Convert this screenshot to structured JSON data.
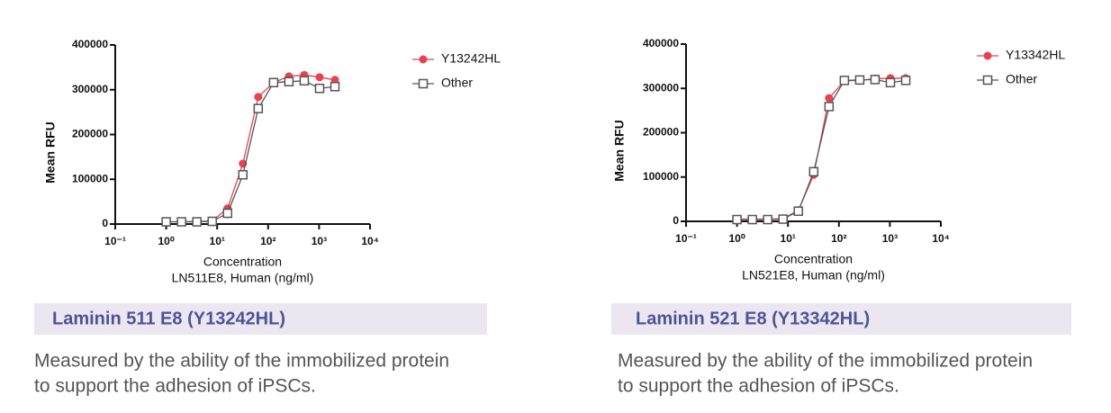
{
  "chart_data": [
    {
      "type": "scatter",
      "connect": true,
      "xscale": "log",
      "grid": false,
      "legend": "top-right",
      "ylabel": "Mean RFU",
      "xlabel": [
        "Concentration",
        "LN511E8, Human (ng/ml)"
      ],
      "x": [
        1,
        2,
        4,
        8,
        16,
        32,
        64,
        128,
        256,
        512,
        1024,
        2048
      ],
      "series": [
        {
          "name": "Y13242HL",
          "color": "#e8414f",
          "marker": "circle",
          "values": [
            5000,
            5000,
            6000,
            7000,
            35000,
            135000,
            284000,
            316000,
            330000,
            333000,
            328000,
            322000
          ]
        },
        {
          "name": "Other",
          "color": "#555555",
          "marker": "square",
          "values": [
            5000,
            5000,
            5000,
            6000,
            24000,
            110000,
            258000,
            316000,
            318000,
            320000,
            303000,
            307000
          ]
        }
      ],
      "xlim": [
        0.1,
        10000
      ],
      "xticks": [
        {
          "value": 0.1,
          "label": "10⁻¹"
        },
        {
          "value": 1,
          "label": "10⁰"
        },
        {
          "value": 10,
          "label": "10¹"
        },
        {
          "value": 100,
          "label": "10²"
        },
        {
          "value": 1000,
          "label": "10³"
        },
        {
          "value": 10000,
          "label": "10⁴"
        }
      ],
      "ylim": [
        0,
        400000
      ],
      "yticks": [
        0,
        100000,
        200000,
        300000,
        400000
      ]
    },
    {
      "type": "scatter",
      "connect": true,
      "xscale": "log",
      "grid": false,
      "legend": "top-right",
      "ylabel": "Mean RFU",
      "xlabel": [
        "Concentration",
        "LN521E8, Human (ng/ml)"
      ],
      "x": [
        1,
        2,
        4,
        8,
        16,
        32,
        64,
        128,
        256,
        512,
        1024,
        2048
      ],
      "series": [
        {
          "name": "Y13342HL",
          "color": "#e8414f",
          "marker": "circle",
          "values": [
            5000,
            5000,
            5000,
            6000,
            25000,
            105000,
            278000,
            317000,
            318000,
            322000,
            323000,
            323000
          ]
        },
        {
          "name": "Other",
          "color": "#555555",
          "marker": "square",
          "values": [
            4000,
            4000,
            4000,
            5000,
            23000,
            112000,
            259000,
            318000,
            319000,
            320000,
            313000,
            318000
          ]
        }
      ],
      "xlim": [
        0.1,
        10000
      ],
      "xticks": [
        {
          "value": 0.1,
          "label": "10⁻¹"
        },
        {
          "value": 1,
          "label": "10⁰"
        },
        {
          "value": 10,
          "label": "10¹"
        },
        {
          "value": 100,
          "label": "10²"
        },
        {
          "value": 1000,
          "label": "10³"
        },
        {
          "value": 10000,
          "label": "10⁴"
        }
      ],
      "ylim": [
        0,
        400000
      ],
      "yticks": [
        0,
        100000,
        200000,
        300000,
        400000
      ]
    }
  ],
  "captions": [
    {
      "title": "Laminin 511 E8 (Y13242HL)",
      "description": [
        "Measured by the ability of the immobilized protein",
        "to support the adhesion of iPSCs."
      ]
    },
    {
      "title": "Laminin 521 E8 (Y13342HL)",
      "description": [
        "Measured by the ability of the immobilized protein",
        "to support the adhesion of iPSCs."
      ]
    }
  ]
}
